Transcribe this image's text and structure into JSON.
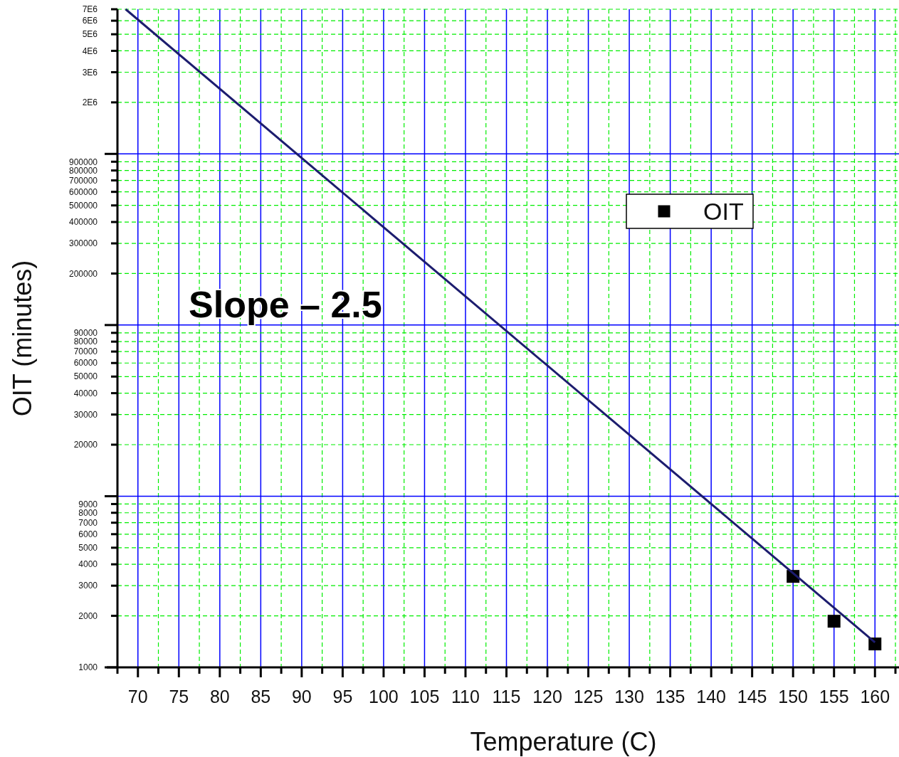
{
  "chart_data": {
    "type": "scatter",
    "xlabel": "Temperature (C)",
    "ylabel": "OIT (minutes)",
    "log": "y",
    "grid": true,
    "legend": "top right",
    "xlim": [
      67.5,
      162.5
    ],
    "xticks": [
      {
        "value": 67.5,
        "label": null
      },
      70,
      {
        "value": 72.5,
        "label": null
      },
      75,
      {
        "value": 77.5,
        "label": null
      },
      80,
      {
        "value": 82.5,
        "label": null
      },
      85,
      {
        "value": 87.5,
        "label": null
      },
      90,
      {
        "value": 92.5,
        "label": null
      },
      95,
      {
        "value": 97.5,
        "label": null
      },
      100,
      {
        "value": 102.5,
        "label": null
      },
      105,
      {
        "value": 107.5,
        "label": null
      },
      110,
      {
        "value": 112.5,
        "label": null
      },
      115,
      {
        "value": 117.5,
        "label": null
      },
      120,
      {
        "value": 122.5,
        "label": null
      },
      125,
      {
        "value": 127.5,
        "label": null
      },
      130,
      {
        "value": 132.5,
        "label": null
      },
      135,
      {
        "value": 137.5,
        "label": null
      },
      140,
      {
        "value": 142.5,
        "label": null
      },
      145,
      {
        "value": 147.5,
        "label": null
      },
      150,
      {
        "value": 152.5,
        "label": null
      },
      155,
      {
        "value": 157.5,
        "label": null
      },
      160,
      {
        "value": 162.5,
        "label": null
      }
    ],
    "ylim": [
      1000,
      7000000
    ],
    "yticks": [
      1000,
      2000,
      3000,
      4000,
      5000,
      6000,
      7000,
      8000,
      9000,
      {
        "value": 10000,
        "label": null
      },
      20000,
      30000,
      40000,
      50000,
      60000,
      70000,
      80000,
      90000,
      {
        "value": 100000,
        "label": null
      },
      200000,
      300000,
      400000,
      500000,
      600000,
      700000,
      800000,
      900000,
      {
        "value": 1000000,
        "label": null
      },
      {
        "value": 2000000,
        "label": "2E6"
      },
      {
        "value": 3000000,
        "label": "3E6"
      },
      {
        "value": 4000000,
        "label": "4E6"
      },
      {
        "value": 5000000,
        "label": "5E6"
      },
      {
        "value": 6000000,
        "label": "6E6"
      },
      {
        "value": 7000000,
        "label": "7E6"
      }
    ],
    "annotations": [
      "Slope – 2.5"
    ],
    "series": [
      {
        "name": "OIT",
        "marker": "square",
        "color": "#000000",
        "x": [
          150,
          155,
          160
        ],
        "values": [
          3400,
          1860,
          1370
        ]
      },
      {
        "type": "line",
        "color": "#1c1c6e",
        "x": [
          68.5,
          160
        ],
        "values": [
          7000000,
          1400
        ]
      }
    ]
  }
}
